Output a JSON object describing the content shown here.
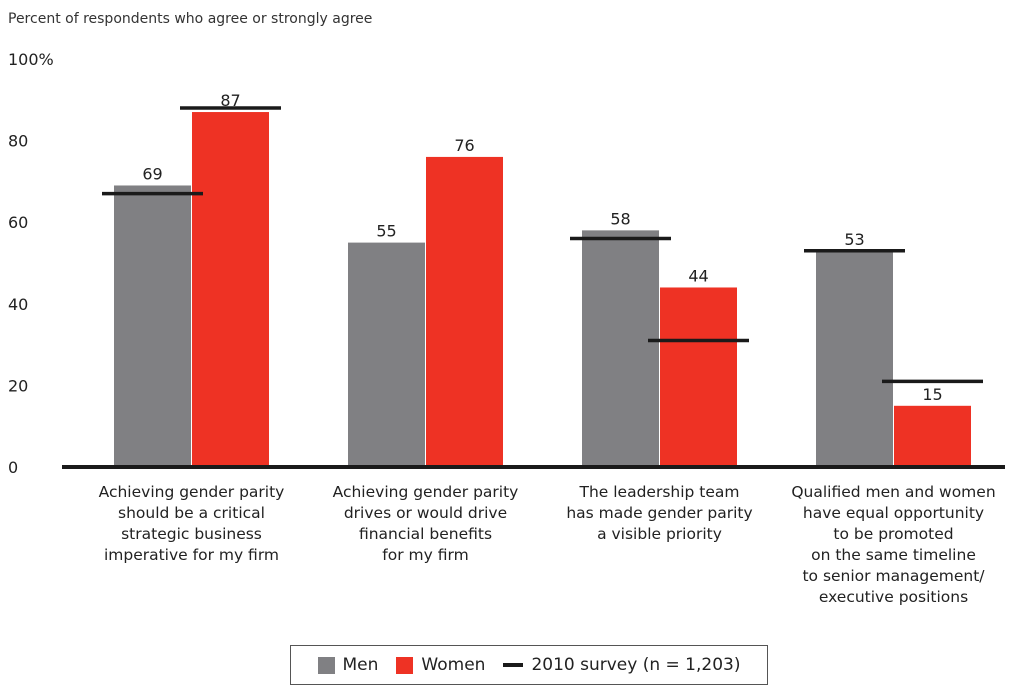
{
  "chart_data": {
    "type": "bar",
    "title": "",
    "ylabel": "Percent of respondents who agree or strongly agree",
    "ylim": [
      0,
      100
    ],
    "yticks": [
      "0",
      "20",
      "40",
      "60",
      "80",
      "100%"
    ],
    "ytick_values": [
      0,
      20,
      40,
      60,
      80,
      100
    ],
    "categories": [
      [
        "Achieving gender parity",
        "should be a critical",
        "strategic business",
        "imperative for my firm"
      ],
      [
        "Achieving gender parity",
        "drives or would drive",
        "financial benefits",
        "for my firm"
      ],
      [
        "The leadership team",
        "has made gender parity",
        "a visible priority"
      ],
      [
        "Qualified men and women",
        "have equal opportunity",
        "to be promoted",
        "on the same timeline",
        "to senior management/",
        "executive positions"
      ]
    ],
    "series": [
      {
        "name": "Men",
        "color": "#808083",
        "values": [
          69,
          55,
          58,
          53
        ]
      },
      {
        "name": "Women",
        "color": "#ee3224",
        "values": [
          87,
          76,
          44,
          15
        ]
      }
    ],
    "benchmark": {
      "name": "2010 survey (n = 1,203)",
      "color": "#1a1a1a",
      "men": [
        67,
        null,
        56,
        53
      ],
      "women": [
        88,
        null,
        31,
        21
      ]
    },
    "grid": false,
    "legend_position": "bottom"
  },
  "legend": {
    "men": "Men",
    "women": "Women",
    "survey": "2010 survey (n = 1,203)"
  }
}
